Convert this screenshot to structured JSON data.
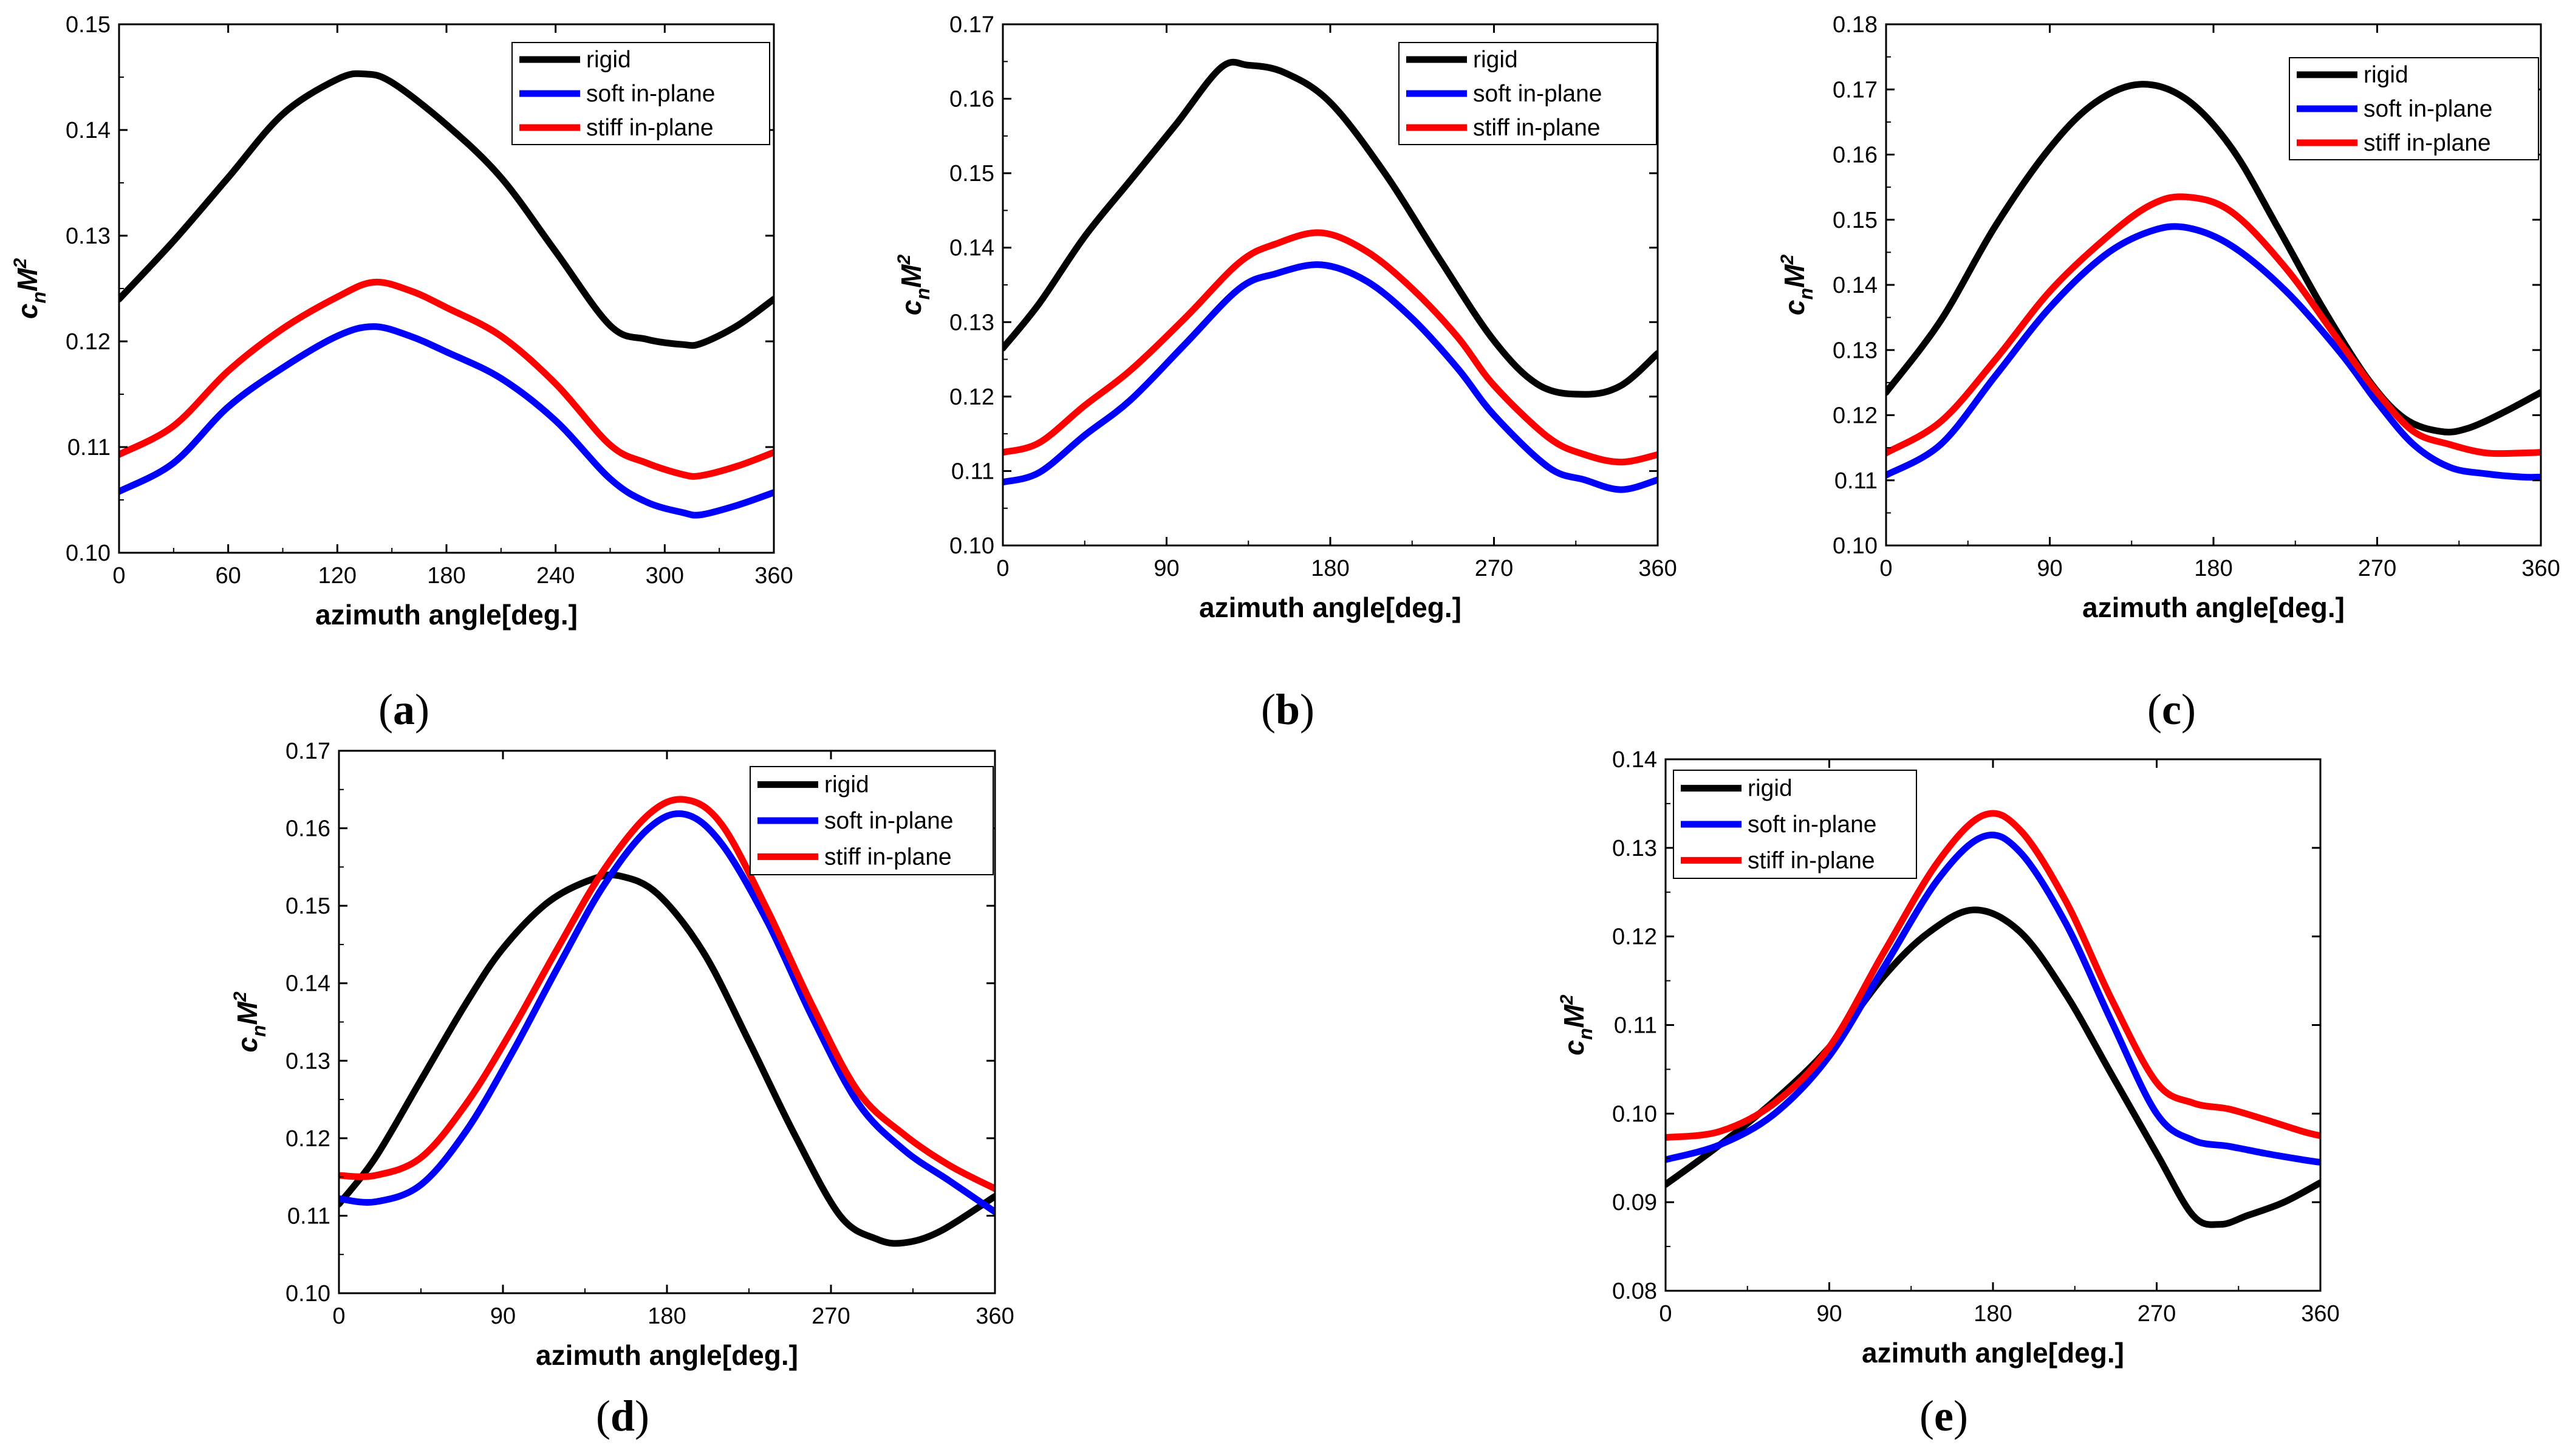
{
  "chart_data": [
    {
      "id": "a",
      "type": "line",
      "caption": "a",
      "xlabel": "azimuth angle[deg.]",
      "ylabel": "c",
      "ylabel_sub": "n",
      "ylabel_main": "M",
      "ylabel_sup": "2",
      "xlim": [
        0,
        360
      ],
      "ylim": [
        0.1,
        0.15
      ],
      "xticks": [
        0,
        60,
        120,
        180,
        240,
        300,
        360
      ],
      "xtick_labels": [
        "0",
        "60",
        "120",
        "180",
        "240",
        "300",
        "360"
      ],
      "yticks": [
        0.1,
        0.11,
        0.12,
        0.13,
        0.14,
        0.15
      ],
      "ytick_labels": [
        "0.10",
        "0.11",
        "0.12",
        "0.13",
        "0.14",
        "0.15"
      ],
      "legend_position": "top-right",
      "series": [
        {
          "name": "rigid",
          "color": "#000000",
          "x": [
            0,
            30,
            60,
            90,
            120,
            135,
            150,
            180,
            210,
            240,
            270,
            290,
            310,
            320,
            340,
            360
          ],
          "y": [
            0.124,
            0.1295,
            0.1355,
            0.1415,
            0.1448,
            0.1453,
            0.1445,
            0.1405,
            0.1355,
            0.1285,
            0.1215,
            0.1202,
            0.1197,
            0.1198,
            0.1215,
            0.124
          ]
        },
        {
          "name": "soft in-plane",
          "color": "#0000FF",
          "x": [
            0,
            30,
            60,
            90,
            120,
            140,
            160,
            180,
            210,
            240,
            270,
            290,
            310,
            320,
            340,
            360
          ],
          "y": [
            0.1058,
            0.1085,
            0.1138,
            0.1175,
            0.1205,
            0.1214,
            0.1205,
            0.119,
            0.1165,
            0.1125,
            0.107,
            0.1048,
            0.1038,
            0.1036,
            0.1045,
            0.1057
          ]
        },
        {
          "name": "stiff in-plane",
          "color": "#FF0000",
          "x": [
            0,
            30,
            60,
            90,
            120,
            140,
            160,
            180,
            210,
            240,
            270,
            290,
            310,
            320,
            340,
            360
          ],
          "y": [
            0.1093,
            0.112,
            0.1172,
            0.1212,
            0.1242,
            0.1256,
            0.1248,
            0.1232,
            0.1205,
            0.116,
            0.1102,
            0.1085,
            0.1074,
            0.1073,
            0.1082,
            0.1095
          ]
        }
      ]
    },
    {
      "id": "b",
      "type": "line",
      "caption": "b",
      "xlabel": "azimuth angle[deg.]",
      "ylabel": "c",
      "ylabel_sub": "n",
      "ylabel_main": "M",
      "ylabel_sup": "2",
      "xlim": [
        0,
        360
      ],
      "ylim": [
        0.1,
        0.17
      ],
      "xticks": [
        0,
        90,
        180,
        270,
        360
      ],
      "xtick_labels": [
        "0",
        "90",
        "180",
        "270",
        "360"
      ],
      "yticks": [
        0.1,
        0.11,
        0.12,
        0.13,
        0.14,
        0.15,
        0.16,
        0.17
      ],
      "ytick_labels": [
        "0.10",
        "0.11",
        "0.12",
        "0.13",
        "0.14",
        "0.15",
        "0.16",
        "0.17"
      ],
      "legend_position": "top-right",
      "series": [
        {
          "name": "rigid",
          "color": "#000000",
          "x": [
            0,
            20,
            45,
            70,
            95,
            120,
            135,
            155,
            180,
            210,
            240,
            270,
            295,
            320,
            340,
            360
          ],
          "y": [
            0.1265,
            0.1325,
            0.1415,
            0.149,
            0.1565,
            0.1642,
            0.1645,
            0.1635,
            0.1595,
            0.15,
            0.1385,
            0.1275,
            0.1215,
            0.1203,
            0.1215,
            0.1258
          ]
        },
        {
          "name": "soft in-plane",
          "color": "#0000FF",
          "x": [
            0,
            20,
            45,
            70,
            100,
            130,
            150,
            175,
            200,
            225,
            250,
            270,
            300,
            320,
            340,
            360
          ],
          "y": [
            0.1085,
            0.1098,
            0.1148,
            0.1195,
            0.127,
            0.1345,
            0.1365,
            0.1377,
            0.1355,
            0.1305,
            0.1238,
            0.1175,
            0.1105,
            0.1088,
            0.1075,
            0.1088
          ]
        },
        {
          "name": "stiff in-plane",
          "color": "#FF0000",
          "x": [
            0,
            20,
            45,
            70,
            100,
            130,
            150,
            175,
            200,
            225,
            250,
            270,
            300,
            320,
            340,
            360
          ],
          "y": [
            0.1125,
            0.1138,
            0.1188,
            0.1235,
            0.1305,
            0.138,
            0.1405,
            0.142,
            0.1395,
            0.1345,
            0.128,
            0.1215,
            0.1145,
            0.1122,
            0.1112,
            0.1122
          ]
        }
      ]
    },
    {
      "id": "c",
      "type": "line",
      "caption": "c",
      "xlabel": "azimuth angle[deg.]",
      "ylabel": "c",
      "ylabel_sub": "n",
      "ylabel_main": "M",
      "ylabel_sup": "2",
      "xlim": [
        0,
        360
      ],
      "ylim": [
        0.1,
        0.18
      ],
      "xticks": [
        0,
        90,
        180,
        270,
        360
      ],
      "xtick_labels": [
        "0",
        "90",
        "180",
        "270",
        "360"
      ],
      "yticks": [
        0.1,
        0.11,
        0.12,
        0.13,
        0.14,
        0.15,
        0.16,
        0.17,
        0.18
      ],
      "ytick_labels": [
        "0.10",
        "0.11",
        "0.12",
        "0.13",
        "0.14",
        "0.15",
        "0.16",
        "0.17",
        "0.18"
      ],
      "legend_position": "top-right",
      "series": [
        {
          "name": "rigid",
          "color": "#000000",
          "x": [
            0,
            30,
            60,
            90,
            115,
            140,
            165,
            190,
            215,
            240,
            265,
            285,
            305,
            320,
            340,
            360
          ],
          "y": [
            0.1235,
            0.1345,
            0.149,
            0.161,
            0.168,
            0.1708,
            0.1685,
            0.161,
            0.149,
            0.1365,
            0.1255,
            0.1195,
            0.1175,
            0.118,
            0.1205,
            0.1235
          ]
        },
        {
          "name": "soft in-plane",
          "color": "#0000FF",
          "x": [
            0,
            30,
            60,
            90,
            120,
            145,
            165,
            190,
            220,
            250,
            270,
            290,
            310,
            330,
            350,
            360
          ],
          "y": [
            0.1108,
            0.1155,
            0.126,
            0.1365,
            0.1445,
            0.1482,
            0.1488,
            0.146,
            0.139,
            0.1295,
            0.122,
            0.1155,
            0.112,
            0.111,
            0.1105,
            0.1105
          ]
        },
        {
          "name": "stiff in-plane",
          "color": "#FF0000",
          "x": [
            0,
            30,
            60,
            90,
            120,
            145,
            165,
            190,
            220,
            250,
            270,
            290,
            310,
            330,
            350,
            360
          ],
          "y": [
            0.1142,
            0.119,
            0.1285,
            0.139,
            0.147,
            0.1522,
            0.1535,
            0.1512,
            0.1425,
            0.131,
            0.1235,
            0.1175,
            0.1155,
            0.1142,
            0.1142,
            0.1143
          ]
        }
      ]
    },
    {
      "id": "d",
      "type": "line",
      "caption": "d",
      "xlabel": "azimuth angle[deg.]",
      "ylabel": "c",
      "ylabel_sub": "n",
      "ylabel_main": "M",
      "ylabel_sup": "2",
      "xlim": [
        0,
        360
      ],
      "ylim": [
        0.1,
        0.17
      ],
      "xticks": [
        0,
        90,
        180,
        270,
        360
      ],
      "xtick_labels": [
        "0",
        "90",
        "180",
        "270",
        "360"
      ],
      "yticks": [
        0.1,
        0.11,
        0.12,
        0.13,
        0.14,
        0.15,
        0.16,
        0.17
      ],
      "ytick_labels": [
        "0.10",
        "0.11",
        "0.12",
        "0.13",
        "0.14",
        "0.15",
        "0.16",
        "0.17"
      ],
      "legend_position": "top-right",
      "series": [
        {
          "name": "rigid",
          "color": "#000000",
          "x": [
            0,
            20,
            45,
            70,
            90,
            115,
            140,
            155,
            175,
            200,
            225,
            250,
            275,
            295,
            310,
            330,
            360
          ],
          "y": [
            0.1115,
            0.1175,
            0.1275,
            0.1375,
            0.1445,
            0.1505,
            0.1535,
            0.1538,
            0.1515,
            0.144,
            0.1325,
            0.1205,
            0.11,
            0.107,
            0.1065,
            0.108,
            0.1125
          ]
        },
        {
          "name": "soft in-plane",
          "color": "#0000FF",
          "x": [
            0,
            20,
            45,
            70,
            95,
            120,
            145,
            170,
            190,
            210,
            235,
            260,
            285,
            310,
            335,
            360
          ],
          "y": [
            0.1122,
            0.1118,
            0.114,
            0.121,
            0.131,
            0.142,
            0.1525,
            0.16,
            0.1618,
            0.158,
            0.148,
            0.1355,
            0.1245,
            0.1185,
            0.1145,
            0.1105
          ]
        },
        {
          "name": "stiff in-plane",
          "color": "#FF0000",
          "x": [
            0,
            20,
            45,
            70,
            95,
            120,
            145,
            170,
            190,
            210,
            235,
            260,
            285,
            310,
            335,
            360
          ],
          "y": [
            0.1152,
            0.1152,
            0.1175,
            0.1245,
            0.134,
            0.1445,
            0.1545,
            0.1618,
            0.1637,
            0.1605,
            0.1495,
            0.137,
            0.126,
            0.1205,
            0.1165,
            0.1135
          ]
        }
      ]
    },
    {
      "id": "e",
      "type": "line",
      "caption": "e",
      "xlabel": "azimuth angle[deg.]",
      "ylabel": "c",
      "ylabel_sub": "n",
      "ylabel_main": "M",
      "ylabel_sup": "2",
      "xlim": [
        0,
        360
      ],
      "ylim": [
        0.08,
        0.14
      ],
      "xticks": [
        0,
        90,
        180,
        270,
        360
      ],
      "xtick_labels": [
        "0",
        "90",
        "180",
        "270",
        "360"
      ],
      "yticks": [
        0.08,
        0.09,
        0.1,
        0.11,
        0.12,
        0.13,
        0.14
      ],
      "ytick_labels": [
        "0.08",
        "0.09",
        "0.10",
        "0.11",
        "0.12",
        "0.13",
        "0.14"
      ],
      "legend_position": "top-left",
      "series": [
        {
          "name": "rigid",
          "color": "#000000",
          "x": [
            0,
            30,
            60,
            90,
            120,
            145,
            170,
            195,
            220,
            245,
            270,
            290,
            305,
            320,
            340,
            360
          ],
          "y": [
            0.092,
            0.0965,
            0.1015,
            0.1075,
            0.1155,
            0.1205,
            0.123,
            0.1205,
            0.1135,
            0.1045,
            0.0955,
            0.0885,
            0.0875,
            0.0885,
            0.09,
            0.0922
          ]
        },
        {
          "name": "soft in-plane",
          "color": "#0000FF",
          "x": [
            0,
            30,
            60,
            90,
            120,
            150,
            175,
            195,
            220,
            245,
            270,
            290,
            310,
            330,
            350,
            360
          ],
          "y": [
            0.0948,
            0.0965,
            0.1,
            0.1065,
            0.1165,
            0.1265,
            0.1313,
            0.1295,
            0.1215,
            0.1105,
            0.1,
            0.097,
            0.0963,
            0.0955,
            0.0948,
            0.0945
          ]
        },
        {
          "name": "stiff in-plane",
          "color": "#FF0000",
          "x": [
            0,
            30,
            60,
            90,
            120,
            150,
            175,
            195,
            220,
            245,
            270,
            290,
            310,
            330,
            350,
            360
          ],
          "y": [
            0.0973,
            0.098,
            0.1012,
            0.1075,
            0.1182,
            0.1285,
            0.1337,
            0.132,
            0.124,
            0.113,
            0.1035,
            0.1012,
            0.1005,
            0.0993,
            0.098,
            0.0975
          ]
        }
      ]
    }
  ]
}
